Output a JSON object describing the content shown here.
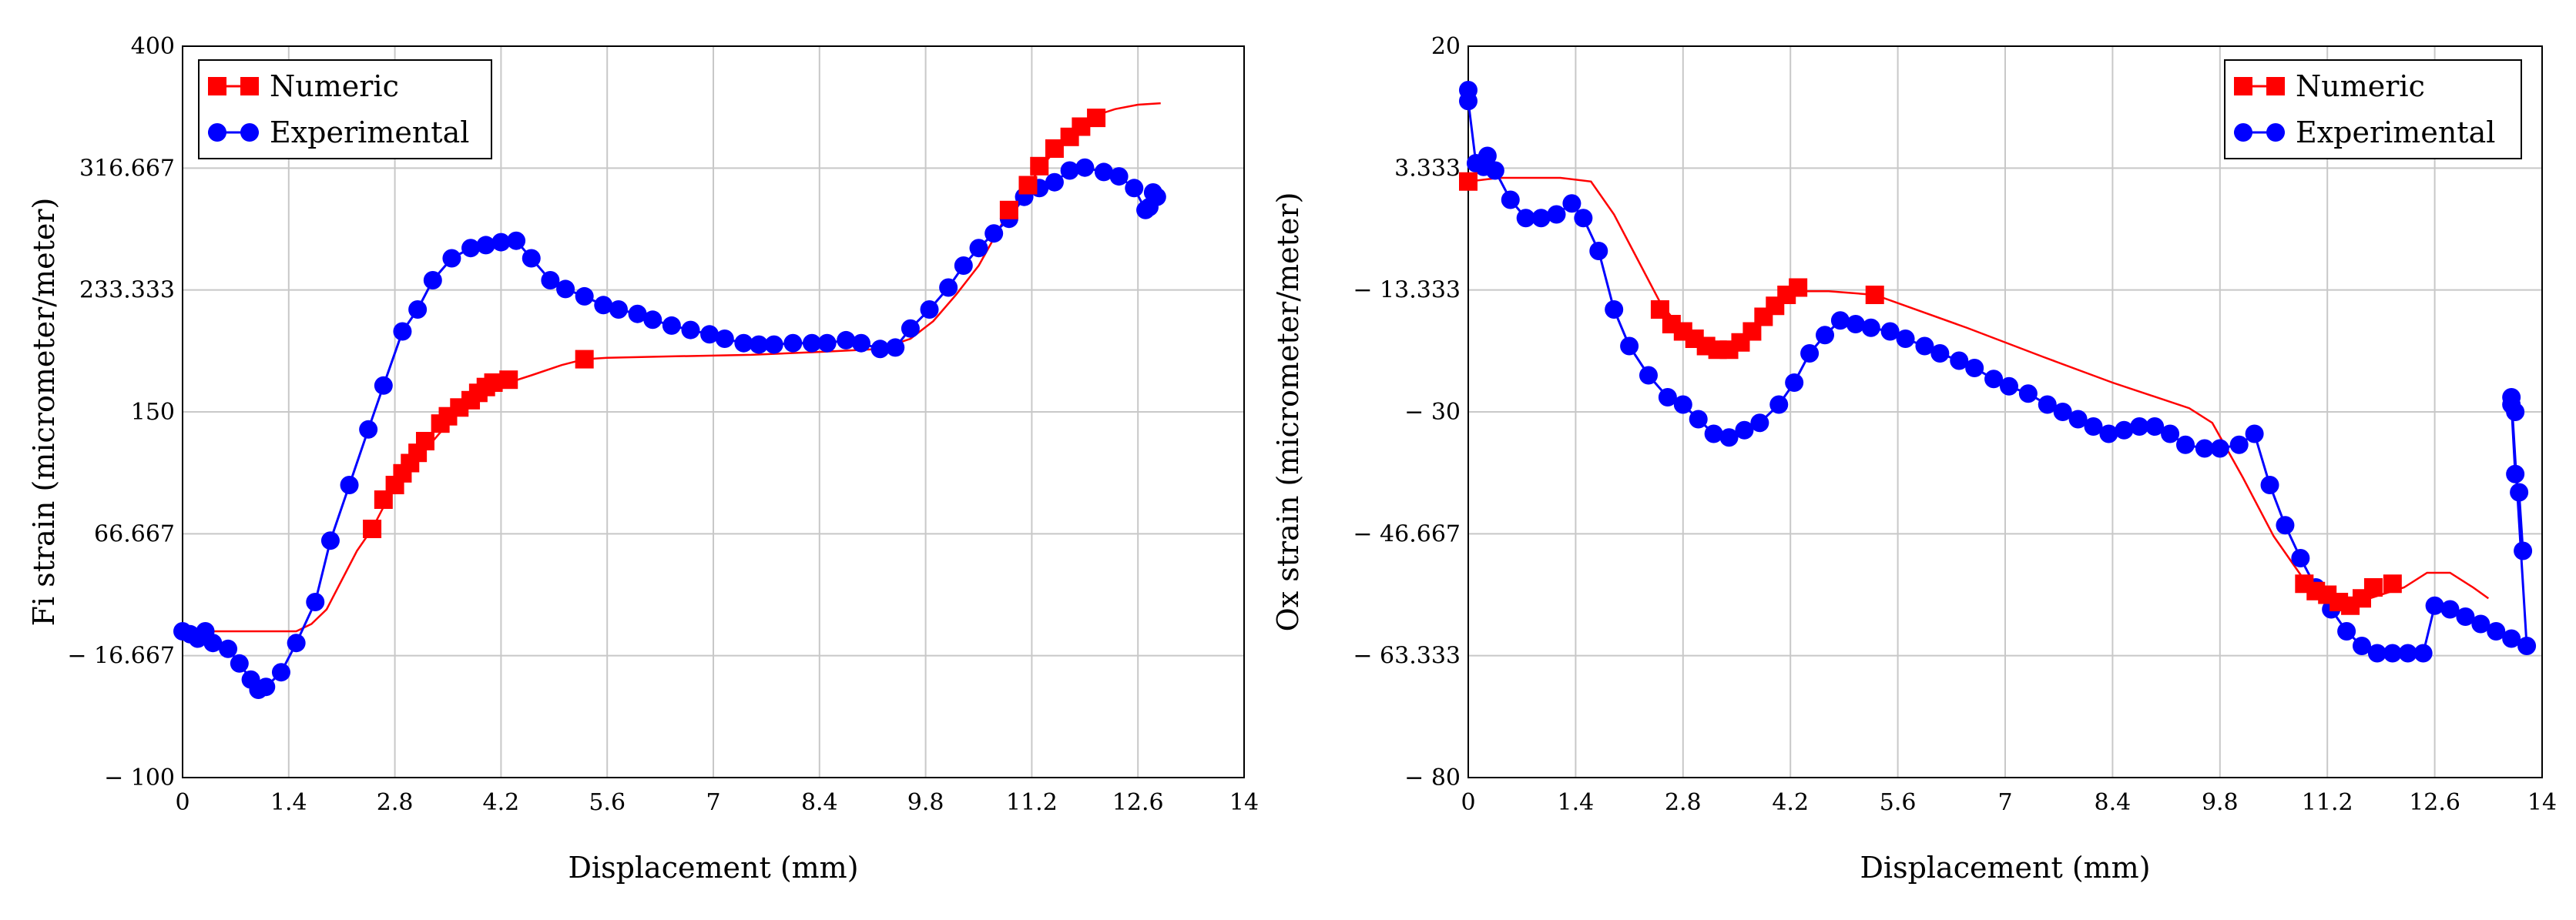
{
  "chart_data": [
    {
      "type": "line",
      "title": "",
      "xlabel": "Displacement (mm)",
      "ylabel": "Fi strain (micrometer/meter)",
      "xlim": [
        0,
        14
      ],
      "ylim": [
        -100,
        400
      ],
      "x_ticks": [
        0,
        1.4,
        2.8,
        4.2,
        5.6,
        7,
        8.4,
        9.8,
        11.2,
        12.6,
        14
      ],
      "x_tick_labels": [
        "0",
        "1.4",
        "2.8",
        "4.2",
        "5.6",
        "7",
        "8.4",
        "9.8",
        "11.2",
        "12.6",
        "14"
      ],
      "y_ticks": [
        -100,
        -16.667,
        66.667,
        150,
        233.333,
        316.667,
        400
      ],
      "y_tick_labels": [
        "− 100",
        "− 16.667",
        "66.667",
        "150",
        "233.333",
        "316.667",
        "400"
      ],
      "grid": true,
      "legend_position": "top-left",
      "colors": {
        "numeric": "#ff0000",
        "experimental": "#0000ff"
      },
      "series": [
        {
          "name": "Numeric",
          "line": [
            [
              0,
              0
            ],
            [
              0.5,
              0
            ],
            [
              1,
              0
            ],
            [
              1.4,
              0
            ],
            [
              1.5,
              0
            ],
            [
              1.7,
              5
            ],
            [
              1.9,
              15
            ],
            [
              2.1,
              35
            ],
            [
              2.3,
              55
            ],
            [
              2.5,
              70
            ],
            [
              2.7,
              90
            ],
            [
              2.9,
              105
            ],
            [
              3.1,
              118
            ],
            [
              3.3,
              130
            ],
            [
              3.5,
              142
            ],
            [
              3.7,
              152
            ],
            [
              3.9,
              160
            ],
            [
              4.1,
              166
            ],
            [
              4.3,
              170
            ],
            [
              4.6,
              175
            ],
            [
              5,
              182
            ],
            [
              5.3,
              186
            ],
            [
              5.6,
              187
            ],
            [
              6.5,
              188
            ],
            [
              7.5,
              189
            ],
            [
              8.4,
              191
            ],
            [
              9.2,
              193
            ],
            [
              9.6,
              200
            ],
            [
              9.9,
              212
            ],
            [
              10.2,
              230
            ],
            [
              10.5,
              250
            ],
            [
              10.8,
              278
            ],
            [
              11.1,
              302
            ],
            [
              11.4,
              322
            ],
            [
              11.7,
              340
            ],
            [
              12,
              352
            ],
            [
              12.3,
              357
            ],
            [
              12.6,
              360
            ],
            [
              12.9,
              361
            ]
          ],
          "markers": [
            [
              2.5,
              70
            ],
            [
              2.65,
              90
            ],
            [
              2.8,
              100
            ],
            [
              2.9,
              108
            ],
            [
              3.0,
              115
            ],
            [
              3.1,
              122
            ],
            [
              3.2,
              130
            ],
            [
              3.4,
              142
            ],
            [
              3.5,
              147
            ],
            [
              3.65,
              153
            ],
            [
              3.8,
              158
            ],
            [
              3.9,
              163
            ],
            [
              4.0,
              167
            ],
            [
              4.1,
              170
            ],
            [
              4.3,
              172
            ],
            [
              5.3,
              186
            ],
            [
              10.9,
              288
            ],
            [
              11.15,
              305
            ],
            [
              11.3,
              318
            ],
            [
              11.5,
              330
            ],
            [
              11.7,
              338
            ],
            [
              11.85,
              345
            ],
            [
              12.05,
              351
            ]
          ]
        },
        {
          "name": "Experimental",
          "markers": [
            [
              0,
              0
            ],
            [
              0.1,
              -2
            ],
            [
              0.2,
              -5
            ],
            [
              0.3,
              0
            ],
            [
              0.4,
              -8
            ],
            [
              0.6,
              -12
            ],
            [
              0.75,
              -22
            ],
            [
              0.9,
              -33
            ],
            [
              1.0,
              -40
            ],
            [
              1.1,
              -38
            ],
            [
              1.3,
              -28
            ],
            [
              1.5,
              -8
            ],
            [
              1.75,
              20
            ],
            [
              1.95,
              62
            ],
            [
              2.2,
              100
            ],
            [
              2.45,
              138
            ],
            [
              2.65,
              168
            ],
            [
              2.9,
              205
            ],
            [
              3.1,
              220
            ],
            [
              3.3,
              240
            ],
            [
              3.55,
              255
            ],
            [
              3.8,
              262
            ],
            [
              4.0,
              264
            ],
            [
              4.2,
              266
            ],
            [
              4.4,
              267
            ],
            [
              4.6,
              255
            ],
            [
              4.85,
              240
            ],
            [
              5.05,
              234
            ],
            [
              5.3,
              229
            ],
            [
              5.55,
              223
            ],
            [
              5.75,
              220
            ],
            [
              6.0,
              217
            ],
            [
              6.2,
              213
            ],
            [
              6.45,
              209
            ],
            [
              6.7,
              206
            ],
            [
              6.95,
              203
            ],
            [
              7.15,
              200
            ],
            [
              7.4,
              197
            ],
            [
              7.6,
              196
            ],
            [
              7.8,
              196
            ],
            [
              8.05,
              197
            ],
            [
              8.3,
              197
            ],
            [
              8.5,
              197
            ],
            [
              8.75,
              199
            ],
            [
              8.95,
              197
            ],
            [
              9.2,
              193
            ],
            [
              9.4,
              194
            ],
            [
              9.6,
              207
            ],
            [
              9.85,
              220
            ],
            [
              10.1,
              235
            ],
            [
              10.3,
              250
            ],
            [
              10.5,
              262
            ],
            [
              10.7,
              272
            ],
            [
              10.9,
              282
            ],
            [
              11.1,
              297
            ],
            [
              11.3,
              303
            ],
            [
              11.5,
              307
            ],
            [
              11.7,
              315
            ],
            [
              11.9,
              317
            ],
            [
              12.15,
              314
            ],
            [
              12.35,
              311
            ],
            [
              12.55,
              303
            ],
            [
              12.7,
              288
            ],
            [
              12.75,
              290
            ],
            [
              12.8,
              300
            ],
            [
              12.85,
              297
            ]
          ]
        }
      ]
    },
    {
      "type": "line",
      "title": "",
      "xlabel": "Displacement (mm)",
      "ylabel": "Ox strain (micrometer/meter)",
      "xlim": [
        0,
        14
      ],
      "ylim": [
        -80,
        20
      ],
      "x_ticks": [
        0,
        1.4,
        2.8,
        4.2,
        5.6,
        7,
        8.4,
        9.8,
        11.2,
        12.6,
        14
      ],
      "x_tick_labels": [
        "0",
        "1.4",
        "2.8",
        "4.2",
        "5.6",
        "7",
        "8.4",
        "9.8",
        "11.2",
        "12.6",
        "14"
      ],
      "y_ticks": [
        -80,
        -63.333,
        -46.667,
        -30,
        -13.333,
        3.333,
        20
      ],
      "y_tick_labels": [
        "− 80",
        "− 63.333",
        "− 46.667",
        "− 30",
        "− 13.333",
        "3.333",
        "20"
      ],
      "grid": true,
      "legend_position": "top-right",
      "colors": {
        "numeric": "#ff0000",
        "experimental": "#0000ff"
      },
      "series": [
        {
          "name": "Numeric",
          "line": [
            [
              0,
              1.5
            ],
            [
              0.4,
              2
            ],
            [
              0.8,
              2
            ],
            [
              1.2,
              2
            ],
            [
              1.6,
              1.5
            ],
            [
              1.9,
              -3
            ],
            [
              2.2,
              -9
            ],
            [
              2.5,
              -15
            ],
            [
              2.8,
              -19
            ],
            [
              3.0,
              -21
            ],
            [
              3.3,
              -21.5
            ],
            [
              3.6,
              -20
            ],
            [
              3.9,
              -16.5
            ],
            [
              4.2,
              -13.5
            ],
            [
              4.7,
              -13.5
            ],
            [
              5.3,
              -14
            ],
            [
              6.5,
              -18.5
            ],
            [
              7.5,
              -22.5
            ],
            [
              8.4,
              -26
            ],
            [
              9.4,
              -29.5
            ],
            [
              9.7,
              -31.5
            ],
            [
              10.1,
              -39
            ],
            [
              10.5,
              -47
            ],
            [
              10.9,
              -53
            ],
            [
              11.3,
              -57
            ],
            [
              11.6,
              -56
            ],
            [
              11.9,
              -55
            ],
            [
              12.2,
              -54
            ],
            [
              12.5,
              -52
            ],
            [
              12.8,
              -52
            ],
            [
              13.1,
              -54
            ],
            [
              13.3,
              -55.5
            ]
          ],
          "markers": [
            [
              0,
              1.5
            ],
            [
              2.5,
              -16
            ],
            [
              2.65,
              -18
            ],
            [
              2.8,
              -19
            ],
            [
              2.95,
              -20
            ],
            [
              3.1,
              -21
            ],
            [
              3.25,
              -21.5
            ],
            [
              3.4,
              -21.5
            ],
            [
              3.55,
              -20.5
            ],
            [
              3.7,
              -19
            ],
            [
              3.85,
              -17
            ],
            [
              4.0,
              -15.5
            ],
            [
              4.15,
              -14
            ],
            [
              4.3,
              -13
            ],
            [
              5.3,
              -14
            ],
            [
              10.9,
              -53.5
            ],
            [
              11.05,
              -54.5
            ],
            [
              11.2,
              -55
            ],
            [
              11.35,
              -56
            ],
            [
              11.5,
              -56.5
            ],
            [
              11.65,
              -55.5
            ],
            [
              11.8,
              -54
            ],
            [
              12.05,
              -53.5
            ]
          ]
        },
        {
          "name": "Experimental",
          "markers": [
            [
              0,
              14
            ],
            [
              0,
              12.5
            ],
            [
              0.1,
              4
            ],
            [
              0.2,
              3.5
            ],
            [
              0.25,
              5
            ],
            [
              0.35,
              3
            ],
            [
              0.55,
              -1
            ],
            [
              0.75,
              -3.5
            ],
            [
              0.95,
              -3.5
            ],
            [
              1.15,
              -3
            ],
            [
              1.35,
              -1.5
            ],
            [
              1.5,
              -3.5
            ],
            [
              1.7,
              -8
            ],
            [
              1.9,
              -16
            ],
            [
              2.1,
              -21
            ],
            [
              2.35,
              -25
            ],
            [
              2.6,
              -28
            ],
            [
              2.8,
              -29
            ],
            [
              3.0,
              -31
            ],
            [
              3.2,
              -33
            ],
            [
              3.4,
              -33.5
            ],
            [
              3.6,
              -32.5
            ],
            [
              3.8,
              -31.5
            ],
            [
              4.05,
              -29
            ],
            [
              4.25,
              -26
            ],
            [
              4.45,
              -22
            ],
            [
              4.65,
              -19.5
            ],
            [
              4.85,
              -17.5
            ],
            [
              5.05,
              -18
            ],
            [
              5.25,
              -18.5
            ],
            [
              5.5,
              -19
            ],
            [
              5.7,
              -20
            ],
            [
              5.95,
              -21
            ],
            [
              6.15,
              -22
            ],
            [
              6.4,
              -23
            ],
            [
              6.6,
              -24
            ],
            [
              6.85,
              -25.5
            ],
            [
              7.05,
              -26.5
            ],
            [
              7.3,
              -27.5
            ],
            [
              7.55,
              -29
            ],
            [
              7.75,
              -30
            ],
            [
              7.95,
              -31
            ],
            [
              8.15,
              -32
            ],
            [
              8.35,
              -33
            ],
            [
              8.55,
              -32.5
            ],
            [
              8.75,
              -32
            ],
            [
              8.95,
              -32
            ],
            [
              9.15,
              -33
            ],
            [
              9.35,
              -34.5
            ],
            [
              9.6,
              -35
            ],
            [
              9.8,
              -35
            ],
            [
              10.05,
              -34.5
            ],
            [
              10.25,
              -33
            ],
            [
              10.45,
              -40
            ],
            [
              10.65,
              -45.5
            ],
            [
              10.85,
              -50
            ],
            [
              11.05,
              -54
            ],
            [
              11.25,
              -57
            ],
            [
              11.45,
              -60
            ],
            [
              11.65,
              -62
            ],
            [
              11.85,
              -63
            ],
            [
              12.05,
              -63
            ],
            [
              12.25,
              -63
            ],
            [
              12.45,
              -63
            ],
            [
              12.6,
              -56.5
            ],
            [
              12.8,
              -57
            ],
            [
              13.0,
              -58
            ],
            [
              13.2,
              -59
            ],
            [
              13.4,
              -60
            ],
            [
              13.6,
              -61
            ],
            [
              13.8,
              -62
            ],
            [
              13.6,
              -28
            ],
            [
              13.65,
              -30
            ],
            [
              13.6,
              -29
            ],
            [
              13.65,
              -38.5
            ],
            [
              13.7,
              -41
            ],
            [
              13.75,
              -49
            ]
          ]
        }
      ]
    }
  ]
}
